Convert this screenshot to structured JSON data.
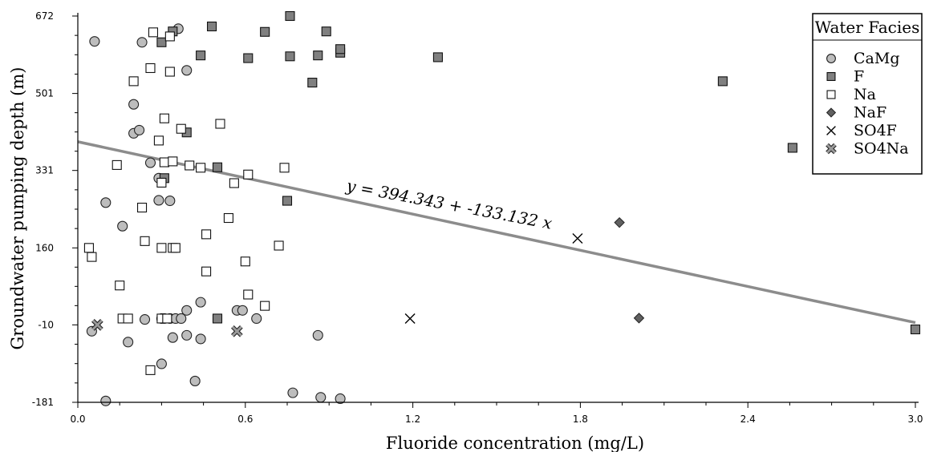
{
  "chart_data": {
    "type": "scatter",
    "xlabel": "Fluoride concentration (mg/L)",
    "ylabel": "Groundwater pumping depth (m)",
    "xlim": [
      0,
      3.0
    ],
    "ylim": [
      -181,
      672
    ],
    "x_ticks": [
      "0.0",
      "0.6",
      "1.2",
      "1.8",
      "2.4",
      "3.0"
    ],
    "y_ticks": [
      "672",
      "501",
      "331",
      "160",
      "-10",
      "-181"
    ],
    "legend_title": "Water Facies",
    "legend_position": "top-right",
    "series": [
      {
        "name": "CaMg",
        "marker": "circle",
        "color": "#bdbdbd",
        "points": [
          [
            0.06,
            616
          ],
          [
            0.05,
            -24
          ],
          [
            0.1,
            260
          ],
          [
            0.1,
            -178
          ],
          [
            0.16,
            208
          ],
          [
            0.18,
            -48
          ],
          [
            0.2,
            477
          ],
          [
            0.2,
            413
          ],
          [
            0.22,
            420
          ],
          [
            0.23,
            614
          ],
          [
            0.24,
            2
          ],
          [
            0.26,
            348
          ],
          [
            0.29,
            265
          ],
          [
            0.29,
            314
          ],
          [
            0.3,
            -96
          ],
          [
            0.3,
            4
          ],
          [
            0.31,
            4
          ],
          [
            0.33,
            264
          ],
          [
            0.33,
            4
          ],
          [
            0.34,
            -38
          ],
          [
            0.35,
            4
          ],
          [
            0.36,
            644
          ],
          [
            0.37,
            4
          ],
          [
            0.39,
            -33
          ],
          [
            0.39,
            22
          ],
          [
            0.39,
            552
          ],
          [
            0.42,
            -134
          ],
          [
            0.44,
            -41
          ],
          [
            0.44,
            40
          ],
          [
            0.57,
            22
          ],
          [
            0.59,
            22
          ],
          [
            0.64,
            4
          ],
          [
            0.77,
            -160
          ],
          [
            0.86,
            -33
          ],
          [
            0.87,
            -170
          ],
          [
            0.94,
            -173
          ]
        ]
      },
      {
        "name": "F",
        "marker": "square",
        "color": "#808080",
        "points": [
          [
            0.3,
            614
          ],
          [
            0.31,
            314
          ],
          [
            0.34,
            638
          ],
          [
            0.39,
            415
          ],
          [
            0.44,
            585
          ],
          [
            0.48,
            649
          ],
          [
            0.5,
            338
          ],
          [
            0.5,
            4
          ],
          [
            0.61,
            579
          ],
          [
            0.67,
            637
          ],
          [
            0.76,
            672
          ],
          [
            0.76,
            583
          ],
          [
            0.75,
            264
          ],
          [
            0.84,
            525
          ],
          [
            0.86,
            585
          ],
          [
            0.89,
            638
          ],
          [
            0.94,
            591
          ],
          [
            0.94,
            599
          ],
          [
            1.29,
            581
          ],
          [
            2.31,
            528
          ],
          [
            2.56,
            381
          ],
          [
            3.0,
            -20
          ]
        ]
      },
      {
        "name": "Na",
        "marker": "square-open",
        "color": "#ffffff",
        "points": [
          [
            0.04,
            160
          ],
          [
            0.05,
            140
          ],
          [
            0.14,
            343
          ],
          [
            0.15,
            77
          ],
          [
            0.16,
            4
          ],
          [
            0.18,
            4
          ],
          [
            0.2,
            528
          ],
          [
            0.23,
            249
          ],
          [
            0.24,
            175
          ],
          [
            0.26,
            -110
          ],
          [
            0.26,
            557
          ],
          [
            0.27,
            636
          ],
          [
            0.29,
            397
          ],
          [
            0.3,
            4
          ],
          [
            0.3,
            160
          ],
          [
            0.3,
            304
          ],
          [
            0.31,
            349
          ],
          [
            0.31,
            446
          ],
          [
            0.32,
            4
          ],
          [
            0.33,
            549
          ],
          [
            0.33,
            627
          ],
          [
            0.34,
            160
          ],
          [
            0.34,
            351
          ],
          [
            0.35,
            160
          ],
          [
            0.37,
            423
          ],
          [
            0.4,
            342
          ],
          [
            0.44,
            337
          ],
          [
            0.46,
            108
          ],
          [
            0.46,
            190
          ],
          [
            0.51,
            434
          ],
          [
            0.54,
            226
          ],
          [
            0.56,
            303
          ],
          [
            0.6,
            130
          ],
          [
            0.61,
            322
          ],
          [
            0.61,
            57
          ],
          [
            0.67,
            32
          ],
          [
            0.72,
            165
          ],
          [
            0.74,
            337
          ]
        ]
      },
      {
        "name": "NaF",
        "marker": "diamond",
        "color": "#606060",
        "points": [
          [
            1.94,
            216
          ],
          [
            2.01,
            5
          ]
        ]
      },
      {
        "name": "SO4F",
        "marker": "cross",
        "color": "#000000",
        "points": [
          [
            1.19,
            4
          ],
          [
            1.79,
            181
          ]
        ]
      },
      {
        "name": "SO4Na",
        "marker": "x-filled",
        "color": "#9a9a9a",
        "points": [
          [
            0.07,
            -10
          ],
          [
            0.57,
            -24
          ]
        ]
      }
    ],
    "trendline": {
      "intercept": 394.343,
      "slope": -133.132,
      "label": "y = 394.343 + -133.132 x",
      "color": "#8c8c8c"
    }
  }
}
